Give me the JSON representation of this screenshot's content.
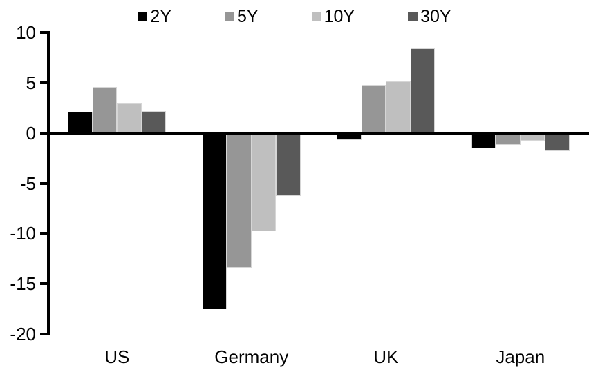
{
  "chart_data": {
    "type": "bar",
    "title": "",
    "categories": [
      "US",
      "Germany",
      "UK",
      "Japan"
    ],
    "series": [
      {
        "name": "2Y",
        "color": "#000000",
        "values": [
          2.1,
          -17.5,
          -0.7,
          -1.5
        ]
      },
      {
        "name": "5Y",
        "color": "#969696",
        "values": [
          4.6,
          -13.4,
          4.8,
          -1.2
        ]
      },
      {
        "name": "10Y",
        "color": "#BFBFBF",
        "values": [
          3.0,
          -9.8,
          5.1,
          -0.8
        ]
      },
      {
        "name": "30Y",
        "color": "#595959",
        "values": [
          2.2,
          -6.3,
          8.4,
          -1.8
        ]
      }
    ],
    "ylim": [
      -20,
      10
    ],
    "yticks": [
      10,
      5,
      0,
      -5,
      -10,
      -15,
      -20
    ],
    "xlabel": "",
    "ylabel": "",
    "grid": false,
    "legend_position": "top-center",
    "axis_color": "#000000",
    "background_color": "#ffffff"
  }
}
